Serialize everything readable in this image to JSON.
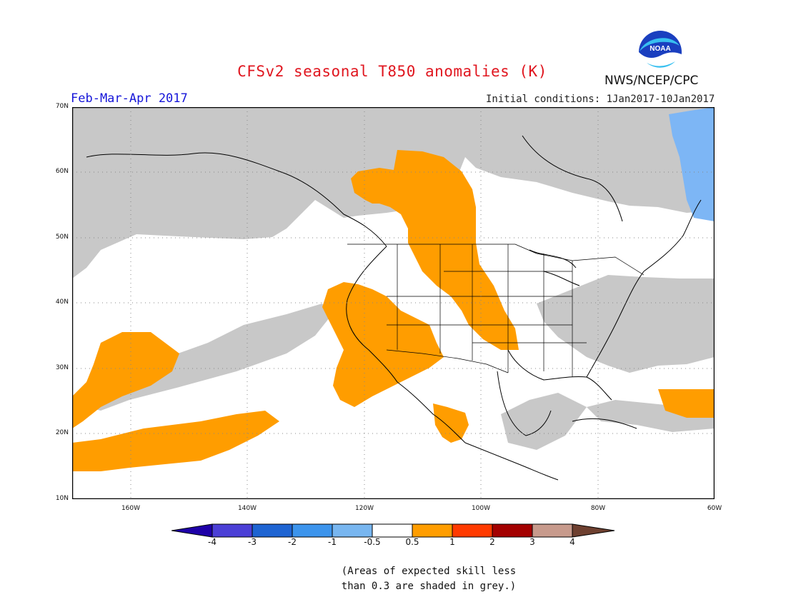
{
  "header": {
    "title": "CFSv2 seasonal T850 anomalies (K)",
    "period": "Feb-Mar-Apr 2017",
    "initial_conditions": "Initial conditions: 1Jan2017-10Jan2017",
    "agency": "NWS/NCEP/CPC",
    "logo_text": "NOAA"
  },
  "map": {
    "projection": "cylindrical equidistant",
    "lon_range": [
      "170W",
      "60W"
    ],
    "lat_range": [
      "10N",
      "70N"
    ],
    "lat_labels": [
      "70N",
      "60N",
      "50N",
      "40N",
      "30N",
      "20N",
      "10N"
    ],
    "lon_labels": [
      "160W",
      "140W",
      "120W",
      "100W",
      "80W",
      "60W"
    ],
    "gridlines": "dotted every 10 degrees",
    "regions": [
      {
        "name": "Canadian Prairies / Northern Plains",
        "category": "0.5 to 1"
      },
      {
        "name": "Southwestern US / Great Basin",
        "category": "0.5 to 1"
      },
      {
        "name": "Southern Plains",
        "category": "0.5 to 1"
      },
      {
        "name": "Central Mexico",
        "category": "0.5 to 1"
      },
      {
        "name": "Subtropical North Pacific (near Hawaii)",
        "category": "0.5 to 1"
      },
      {
        "name": "Western Atlantic near 25N 60W",
        "category": "0.5 to 1"
      },
      {
        "name": "Labrador coast",
        "category": "-1 to -0.5"
      },
      {
        "name": "Alaska, northern Canada, NE US, Gulf of Mexico",
        "category": "low skill (grey)"
      }
    ]
  },
  "colorbar": {
    "labels": [
      "-4",
      "-3",
      "-2",
      "-1",
      "-0.5",
      "0.5",
      "1",
      "2",
      "3",
      "4"
    ],
    "colors": [
      "#1e00a8",
      "#4b3fd6",
      "#1e64d2",
      "#3c94ec",
      "#78b6f0",
      "#ffffff",
      "#ff9d00",
      "#ff3a00",
      "#a30000",
      "#c79a8c",
      "#6e4030"
    ]
  },
  "colors": {
    "warm_anomaly": "#ff9d00",
    "cold_anomaly": "#7db6f5",
    "low_skill": "#c8c8c8",
    "title": "#e0161f",
    "period": "#1515d9"
  },
  "footnote": {
    "line1": "(Areas of expected skill less",
    "line2": "than 0.3 are shaded in grey.)"
  }
}
